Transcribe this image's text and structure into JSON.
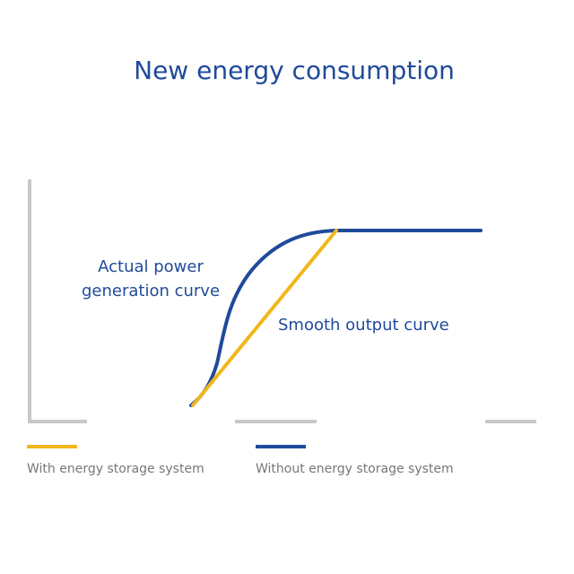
{
  "title": "New energy consumption",
  "annotations": {
    "actual_curve": [
      "Actual power",
      "generation curve"
    ],
    "smooth_curve": "Smooth output curve"
  },
  "legend": [
    {
      "label": "With energy storage system"
    },
    {
      "label": "Without energy storage system"
    }
  ]
}
